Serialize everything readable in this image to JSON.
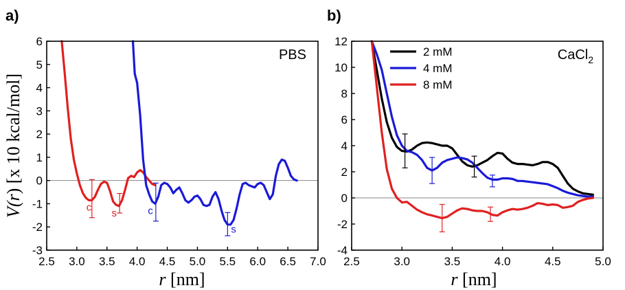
{
  "chart_data": [
    {
      "panel": "a)",
      "type": "line",
      "annotation": "PBS",
      "xlabel": "r [nm]",
      "ylabel": "V(r) [x 10 kcal/mol]",
      "xlim": [
        2.5,
        7.0
      ],
      "ylim": [
        -3,
        6
      ],
      "xticks": [
        "2.5",
        "3.0",
        "3.5",
        "4.0",
        "4.5",
        "5.0",
        "5.5",
        "6.0",
        "6.5",
        "7.0"
      ],
      "yticks": [
        "-3",
        "-2",
        "-1",
        "0",
        "1",
        "2",
        "3",
        "4",
        "5",
        "6"
      ],
      "series": [
        {
          "color": "#e02020",
          "x": [
            2.75,
            2.8,
            2.85,
            2.9,
            2.95,
            3.0,
            3.05,
            3.1,
            3.15,
            3.2,
            3.25,
            3.3,
            3.35,
            3.4,
            3.45,
            3.5,
            3.55,
            3.6,
            3.65,
            3.7,
            3.75,
            3.8,
            3.85,
            3.9,
            3.95,
            4.0,
            4.05,
            4.1,
            4.15,
            4.2,
            4.25,
            4.3
          ],
          "y": [
            6.0,
            4.6,
            3.1,
            1.8,
            0.9,
            0.3,
            -0.2,
            -0.55,
            -0.75,
            -0.85,
            -0.85,
            -0.7,
            -0.4,
            -0.15,
            -0.05,
            -0.1,
            -0.45,
            -0.9,
            -1.05,
            -1.1,
            -0.85,
            -0.4,
            0.1,
            0.2,
            0.15,
            0.35,
            0.45,
            0.35,
            0.15,
            0.0,
            -0.15,
            -0.2
          ]
        },
        {
          "color": "#1a1ad8",
          "x": [
            3.93,
            3.96,
            4.0,
            4.05,
            4.1,
            4.15,
            4.2,
            4.25,
            4.3,
            4.35,
            4.4,
            4.45,
            4.5,
            4.55,
            4.6,
            4.65,
            4.7,
            4.75,
            4.8,
            4.85,
            4.9,
            4.95,
            5.0,
            5.05,
            5.1,
            5.15,
            5.2,
            5.25,
            5.3,
            5.35,
            5.4,
            5.45,
            5.5,
            5.55,
            5.6,
            5.65,
            5.7,
            5.75,
            5.8,
            5.85,
            5.9,
            5.95,
            6.0,
            6.05,
            6.1,
            6.15,
            6.2,
            6.25,
            6.3,
            6.35,
            6.4,
            6.45,
            6.5,
            6.55,
            6.6,
            6.65
          ],
          "y": [
            6.0,
            4.6,
            4.2,
            2.8,
            0.9,
            -0.2,
            -0.6,
            -0.9,
            -1.0,
            -0.7,
            -0.2,
            -0.1,
            -0.15,
            -0.3,
            -0.55,
            -0.4,
            -0.3,
            -0.55,
            -0.85,
            -0.95,
            -0.85,
            -0.7,
            -0.65,
            -0.8,
            -1.05,
            -1.1,
            -1.05,
            -0.7,
            -0.5,
            -0.8,
            -1.3,
            -1.7,
            -1.9,
            -1.9,
            -1.7,
            -1.2,
            -0.6,
            -0.15,
            -0.1,
            -0.2,
            -0.25,
            -0.3,
            -0.15,
            -0.1,
            -0.2,
            -0.5,
            -0.8,
            -0.6,
            0.2,
            0.7,
            0.9,
            0.85,
            0.55,
            0.2,
            0.05,
            0.0
          ]
        }
      ],
      "error_bars": [
        {
          "x": 3.25,
          "y": -0.78,
          "err": 0.82,
          "color": "#e02020"
        },
        {
          "x": 3.71,
          "y": -0.98,
          "err": 0.42,
          "color": "#e02020"
        },
        {
          "x": 4.31,
          "y": -0.93,
          "err": 0.82,
          "color": "#1a1ad8"
        },
        {
          "x": 5.5,
          "y": -1.88,
          "err": 0.5,
          "color": "#1a1ad8"
        }
      ],
      "site_labels": [
        {
          "text": "c",
          "x": 3.2,
          "y": -1.3,
          "color": "#e02020"
        },
        {
          "text": "s",
          "x": 3.62,
          "y": -1.55,
          "color": "#e02020"
        },
        {
          "text": "c",
          "x": 4.22,
          "y": -1.45,
          "color": "#1a1ad8"
        },
        {
          "text": "s",
          "x": 5.6,
          "y": -2.25,
          "color": "#1a1ad8"
        }
      ]
    },
    {
      "panel": "b)",
      "type": "line",
      "annotation": "CaCl2",
      "xlabel": "r [nm]",
      "ylabel": "",
      "xlim": [
        2.5,
        5.0
      ],
      "ylim": [
        -4,
        12
      ],
      "xticks": [
        "2.5",
        "3.0",
        "3.5",
        "4.0",
        "4.5",
        "5.0"
      ],
      "yticks": [
        "-4",
        "-2",
        "0",
        "2",
        "4",
        "6",
        "8",
        "10",
        "12"
      ],
      "legend_position": "top-left",
      "series": [
        {
          "name": "2 mM",
          "color": "#000000",
          "x": [
            2.7,
            2.75,
            2.8,
            2.85,
            2.9,
            2.95,
            3.0,
            3.05,
            3.1,
            3.15,
            3.2,
            3.25,
            3.3,
            3.35,
            3.4,
            3.45,
            3.5,
            3.55,
            3.6,
            3.65,
            3.7,
            3.75,
            3.8,
            3.85,
            3.9,
            3.95,
            4.0,
            4.05,
            4.1,
            4.15,
            4.2,
            4.25,
            4.3,
            4.35,
            4.4,
            4.45,
            4.5,
            4.55,
            4.6,
            4.65,
            4.7,
            4.75,
            4.8,
            4.85,
            4.9
          ],
          "y": [
            12.0,
            9.8,
            7.6,
            5.8,
            4.6,
            3.9,
            3.6,
            3.55,
            3.7,
            4.0,
            4.2,
            4.25,
            4.2,
            4.1,
            4.0,
            4.0,
            3.8,
            3.3,
            2.8,
            2.5,
            2.4,
            2.5,
            2.7,
            2.9,
            3.2,
            3.45,
            3.4,
            3.0,
            2.7,
            2.6,
            2.6,
            2.55,
            2.5,
            2.6,
            2.75,
            2.75,
            2.6,
            2.3,
            1.7,
            1.1,
            0.7,
            0.5,
            0.35,
            0.3,
            0.25
          ]
        },
        {
          "name": "4 mM",
          "color": "#1a1ad8",
          "x": [
            2.7,
            2.75,
            2.8,
            2.85,
            2.9,
            2.95,
            3.0,
            3.05,
            3.1,
            3.15,
            3.2,
            3.25,
            3.3,
            3.35,
            3.4,
            3.45,
            3.5,
            3.55,
            3.6,
            3.65,
            3.7,
            3.75,
            3.8,
            3.85,
            3.9,
            3.95,
            4.0,
            4.05,
            4.1,
            4.15,
            4.2,
            4.25,
            4.3,
            4.35,
            4.4,
            4.45,
            4.5,
            4.55,
            4.6,
            4.65,
            4.7,
            4.75,
            4.8,
            4.85,
            4.9
          ],
          "y": [
            12.0,
            11.0,
            9.8,
            8.0,
            6.2,
            4.8,
            4.0,
            3.6,
            3.5,
            3.3,
            2.9,
            2.3,
            2.1,
            2.3,
            2.7,
            2.9,
            3.0,
            3.1,
            3.05,
            2.95,
            2.7,
            2.3,
            1.9,
            1.55,
            1.4,
            1.4,
            1.5,
            1.5,
            1.45,
            1.3,
            1.3,
            1.25,
            1.2,
            1.15,
            1.1,
            1.05,
            0.9,
            0.75,
            0.55,
            0.4,
            0.3,
            0.2,
            0.15,
            0.1,
            0.1
          ]
        },
        {
          "name": "8 mM",
          "color": "#e02020",
          "x": [
            2.7,
            2.75,
            2.8,
            2.85,
            2.9,
            2.95,
            3.0,
            3.05,
            3.1,
            3.15,
            3.2,
            3.25,
            3.3,
            3.35,
            3.4,
            3.45,
            3.5,
            3.55,
            3.6,
            3.65,
            3.7,
            3.75,
            3.8,
            3.85,
            3.9,
            3.95,
            4.0,
            4.05,
            4.1,
            4.15,
            4.2,
            4.25,
            4.3,
            4.35,
            4.4,
            4.45,
            4.5,
            4.55,
            4.6,
            4.65,
            4.7,
            4.75,
            4.8,
            4.85,
            4.9
          ],
          "y": [
            12.0,
            8.5,
            5.0,
            2.2,
            0.7,
            0.0,
            -0.35,
            -0.3,
            -0.6,
            -0.9,
            -1.1,
            -1.25,
            -1.35,
            -1.45,
            -1.55,
            -1.45,
            -1.2,
            -0.95,
            -0.8,
            -0.85,
            -0.95,
            -1.0,
            -1.0,
            -1.1,
            -1.3,
            -1.35,
            -1.1,
            -0.95,
            -0.85,
            -0.9,
            -0.85,
            -0.75,
            -0.6,
            -0.4,
            -0.45,
            -0.55,
            -0.5,
            -0.55,
            -0.75,
            -0.7,
            -0.6,
            -0.3,
            -0.15,
            -0.05,
            0.0
          ]
        }
      ],
      "error_bars": [
        {
          "x": 3.03,
          "y": 3.6,
          "err": 1.3,
          "color": "#000000"
        },
        {
          "x": 3.72,
          "y": 2.4,
          "err": 0.8,
          "color": "#000000"
        },
        {
          "x": 3.3,
          "y": 2.1,
          "err": 1.0,
          "color": "#1a1ad8"
        },
        {
          "x": 3.9,
          "y": 1.3,
          "err": 0.45,
          "color": "#1a1ad8"
        },
        {
          "x": 3.4,
          "y": -1.55,
          "err": 1.05,
          "color": "#e02020"
        },
        {
          "x": 3.88,
          "y": -1.25,
          "err": 0.55,
          "color": "#e02020"
        }
      ]
    }
  ],
  "labels": {
    "panel_a": "a)",
    "panel_b": "b)",
    "pbs": "PBS",
    "cacl_main": "CaCl",
    "cacl_sub": "2",
    "ylabel_a_prefix": "V(",
    "ylabel_a_r": "r",
    "ylabel_a_suffix": ") [x 10 kcal/mol]",
    "xlabel_r": "r",
    "xlabel_unit": " [nm]"
  }
}
